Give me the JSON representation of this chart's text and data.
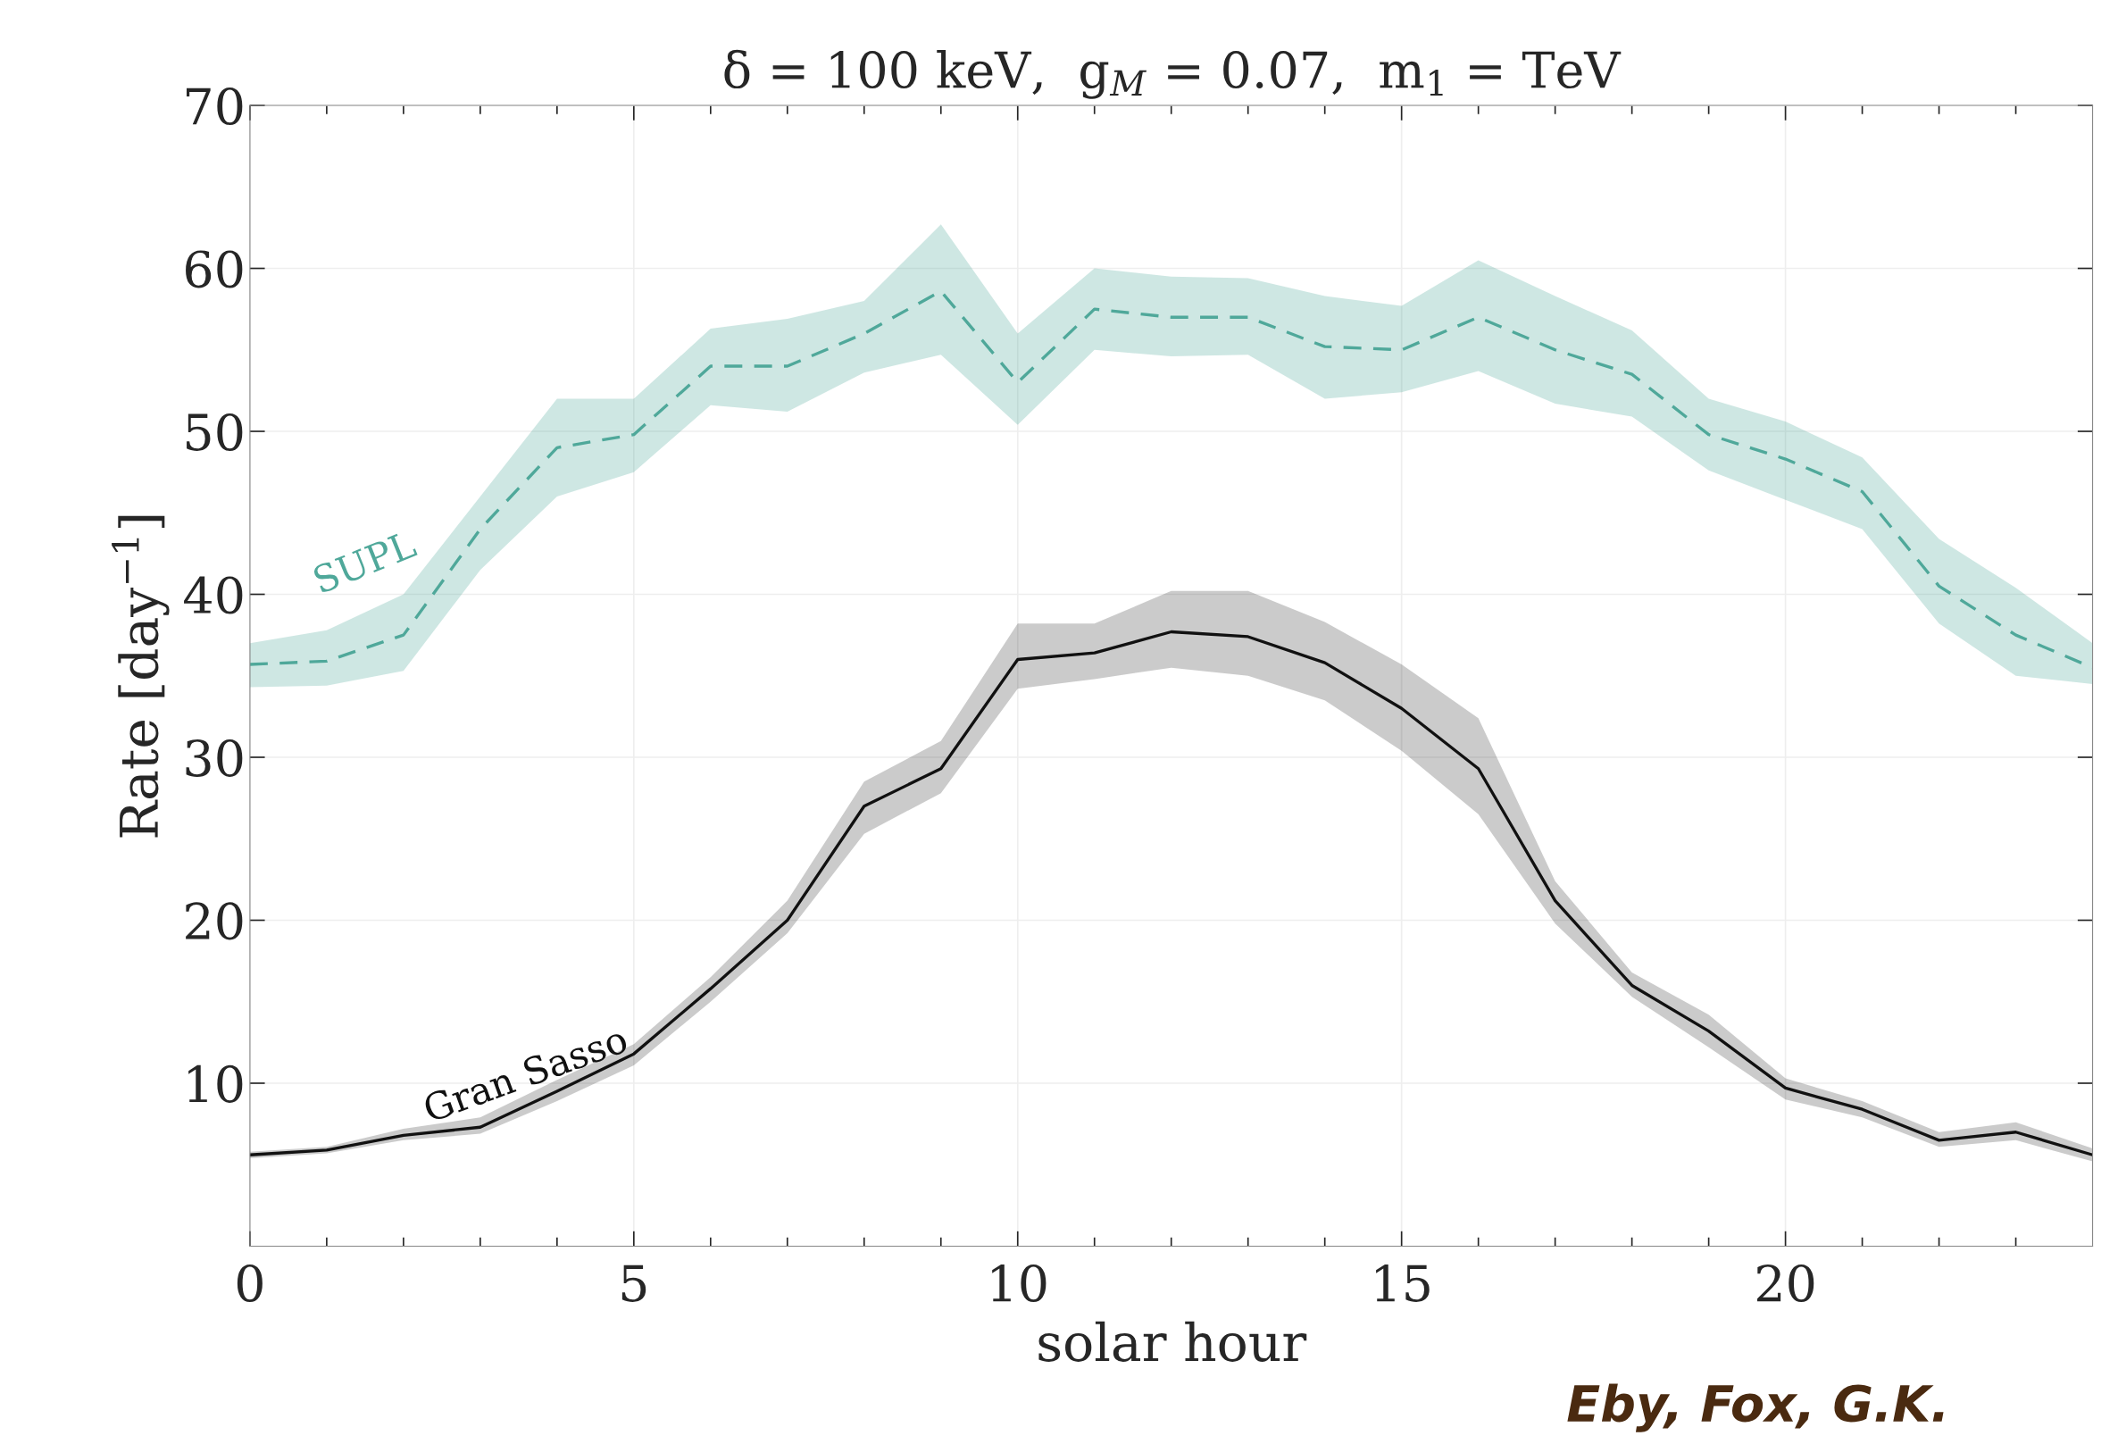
{
  "chart_data": {
    "type": "line",
    "title": "δ = 100 keV,  g$_{M}$ = 0.07,  m$_{1}$ = TeV",
    "xlabel": "solar hour",
    "ylabel": "Rate [day$^{−1}$]",
    "x": [
      0,
      1,
      2,
      3,
      4,
      5,
      6,
      7,
      8,
      9,
      10,
      11,
      12,
      13,
      14,
      15,
      16,
      17,
      18,
      19,
      20,
      21,
      22,
      23,
      24
    ],
    "series": [
      {
        "name": "SUPL",
        "color": "#4fa89a",
        "line_style": "dashed",
        "values": [
          35.7,
          35.9,
          37.5,
          44,
          49,
          49.8,
          54,
          54,
          56,
          58.6,
          53,
          57.5,
          57,
          57,
          55.2,
          55,
          57,
          55,
          53.5,
          49.8,
          48.3,
          46.3,
          40.5,
          37.5,
          35.5
        ],
        "upper": [
          37,
          37.8,
          40,
          46,
          52,
          52,
          56.3,
          56.9,
          58,
          62.7,
          56,
          60,
          59.5,
          59.4,
          58.3,
          57.7,
          60.5,
          58.3,
          56.2,
          52,
          50.6,
          48.4,
          43.4,
          40.4,
          37
        ],
        "lower": [
          34.3,
          34.4,
          35.3,
          41.5,
          46,
          47.5,
          51.6,
          51.2,
          53.6,
          54.7,
          50.4,
          55,
          54.6,
          54.7,
          52,
          52.4,
          53.7,
          51.7,
          50.9,
          47.6,
          45.8,
          44,
          38.2,
          35,
          34.5
        ]
      },
      {
        "name": "Gran Sasso",
        "color": "#111111",
        "line_style": "solid",
        "values": [
          5.6,
          5.9,
          6.8,
          7.3,
          9.5,
          11.8,
          15.8,
          20,
          27,
          29.3,
          36,
          36.4,
          37.7,
          37.4,
          35.8,
          33,
          29.3,
          21.2,
          16,
          13.2,
          9.7,
          8.4,
          6.5,
          7,
          5.6
        ],
        "upper": [
          5.8,
          6.1,
          7.2,
          7.9,
          10.2,
          12.4,
          16.5,
          21.2,
          28.5,
          31,
          38.2,
          38.2,
          40.2,
          40.2,
          38.3,
          35.7,
          32.4,
          22.4,
          16.8,
          14.2,
          10.3,
          8.9,
          7,
          7.6,
          6
        ],
        "lower": [
          5.4,
          5.7,
          6.5,
          6.9,
          8.9,
          11.1,
          15,
          19.2,
          25.3,
          27.8,
          34.2,
          34.8,
          35.5,
          35,
          33.5,
          30.4,
          26.5,
          19.8,
          15.3,
          12.2,
          9,
          7.9,
          6.1,
          6.5,
          5.2
        ]
      }
    ],
    "xlim": [
      0,
      24
    ],
    "ylim": [
      0,
      70
    ],
    "xticks": [
      0,
      {
        "value": 1,
        "label": null
      },
      {
        "value": 2,
        "label": null
      },
      {
        "value": 3,
        "label": null
      },
      {
        "value": 4,
        "label": null
      },
      5,
      {
        "value": 6,
        "label": null
      },
      {
        "value": 7,
        "label": null
      },
      {
        "value": 8,
        "label": null
      },
      {
        "value": 9,
        "label": null
      },
      10,
      {
        "value": 11,
        "label": null
      },
      {
        "value": 12,
        "label": null
      },
      {
        "value": 13,
        "label": null
      },
      {
        "value": 14,
        "label": null
      },
      15,
      {
        "value": 16,
        "label": null
      },
      {
        "value": 17,
        "label": null
      },
      {
        "value": 18,
        "label": null
      },
      {
        "value": 19,
        "label": null
      },
      20,
      {
        "value": 21,
        "label": null
      },
      {
        "value": 22,
        "label": null
      },
      {
        "value": 23,
        "label": null
      }
    ],
    "yticks": [
      10,
      20,
      30,
      40,
      50,
      60,
      70
    ],
    "grid": true,
    "legend": false,
    "marker": "none",
    "annotations": [
      "Eby, Fox, G.K."
    ]
  }
}
